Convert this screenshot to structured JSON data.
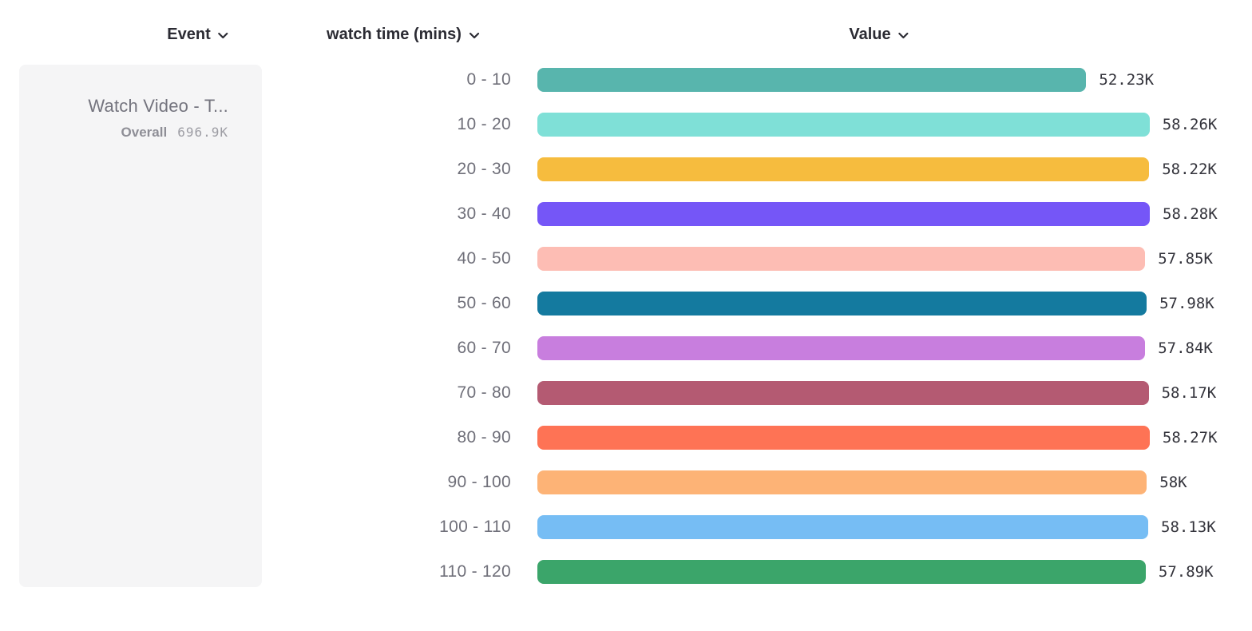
{
  "headers": {
    "event": "Event",
    "breakdown": "watch time (mins)",
    "value": "Value"
  },
  "event_card": {
    "name": "Watch Video - T...",
    "overall_label": "Overall",
    "overall_value": "696.9K"
  },
  "icons": {
    "dropdown_chevron": "chevron-down"
  },
  "colors": {
    "header_text": "#2b2b33",
    "category_text": "#6f6f79",
    "value_text": "#33333b",
    "card_background": "#f5f5f6"
  },
  "chart_data": {
    "type": "bar",
    "orientation": "horizontal",
    "title": "",
    "xlabel": "Value",
    "ylabel": "watch time (mins)",
    "categories": [
      "0 - 10",
      "10 - 20",
      "20 - 30",
      "30 - 40",
      "40 - 50",
      "50 - 60",
      "60 - 70",
      "70 - 80",
      "80 - 90",
      "90 - 100",
      "100 - 110",
      "110 - 120"
    ],
    "values": [
      52230,
      58260,
      58220,
      58280,
      57850,
      57980,
      57840,
      58170,
      58270,
      58000,
      58130,
      57890
    ],
    "value_labels": [
      "52.23K",
      "58.26K",
      "58.22K",
      "58.28K",
      "57.85K",
      "57.98K",
      "57.84K",
      "58.17K",
      "58.27K",
      "58K",
      "58.13K",
      "57.89K"
    ],
    "bar_colors": [
      "#58b5ad",
      "#7fe0d7",
      "#f6bc3e",
      "#7556f7",
      "#fdbdb4",
      "#147a9f",
      "#c87ede",
      "#b45a72",
      "#fe7355",
      "#fdb376",
      "#76bdf4",
      "#3ba56a"
    ],
    "series_name": "Watch Video - T...",
    "overall": "696.9K",
    "grid": false,
    "legend_position": "left"
  }
}
